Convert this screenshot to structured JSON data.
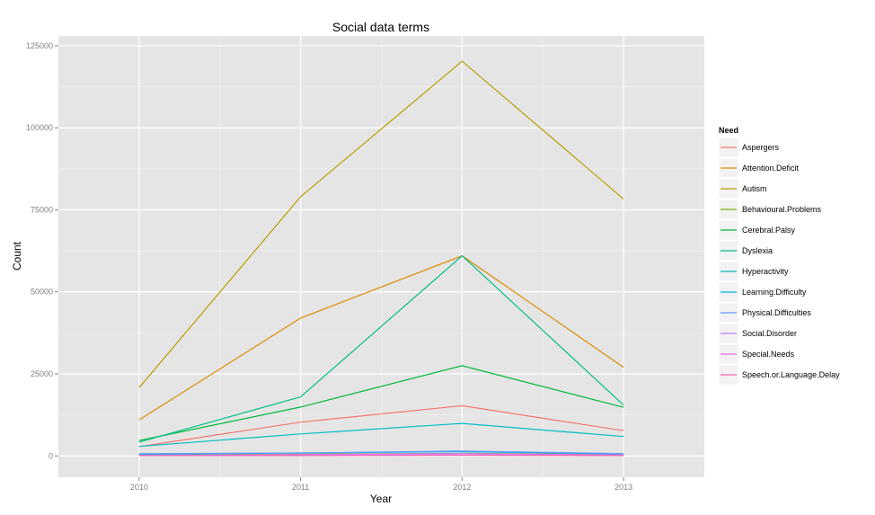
{
  "chart_data": {
    "type": "line",
    "title": "Social data terms",
    "xlabel": "Year",
    "ylabel": "Count",
    "x": [
      2010,
      2011,
      2012,
      2013
    ],
    "xticks": [
      "2010",
      "2011",
      "2012",
      "2013"
    ],
    "xlim": [
      2009.5,
      2013.5
    ],
    "ylim": [
      -6500,
      128000
    ],
    "yticks": [
      0,
      25000,
      50000,
      75000,
      100000,
      125000
    ],
    "ytick_labels": [
      "0",
      "25000",
      "50000",
      "75000",
      "100000",
      "125000"
    ],
    "grid": true,
    "legend_title": "Need",
    "legend_position": "right",
    "series": [
      {
        "name": "Aspergers",
        "color": "#F8766D",
        "values": [
          2800,
          10300,
          15300,
          7700
        ]
      },
      {
        "name": "Attention.Deficit",
        "color": "#DE8C00",
        "values": [
          11000,
          42000,
          61000,
          27000
        ]
      },
      {
        "name": "Autism",
        "color": "#B79F00",
        "values": [
          20800,
          79000,
          120300,
          78300
        ]
      },
      {
        "name": "Behavioural.Problems",
        "color": "#7CAE00",
        "values": [
          300,
          500,
          800,
          400
        ]
      },
      {
        "name": "Cerebral.Palsy",
        "color": "#00BA38",
        "values": [
          4700,
          14900,
          27500,
          14800
        ]
      },
      {
        "name": "Dyslexia",
        "color": "#00C08B",
        "values": [
          4200,
          18000,
          61000,
          15500
        ]
      },
      {
        "name": "Hyperactivity",
        "color": "#00BFC4",
        "values": [
          2900,
          6700,
          9900,
          5900
        ]
      },
      {
        "name": "Learning.Difficulty",
        "color": "#00B4F0",
        "values": [
          500,
          900,
          1300,
          600
        ]
      },
      {
        "name": "Physical.Difficulties",
        "color": "#619CFF",
        "values": [
          700,
          900,
          1500,
          700
        ]
      },
      {
        "name": "Social.Disorder",
        "color": "#C77CFF",
        "values": [
          200,
          400,
          700,
          300
        ]
      },
      {
        "name": "Special.Needs",
        "color": "#F564E3",
        "values": [
          100,
          200,
          300,
          200
        ]
      },
      {
        "name": "Speech.or.Language.Delay",
        "color": "#FF64B0",
        "values": [
          100,
          100,
          200,
          100
        ]
      }
    ]
  }
}
